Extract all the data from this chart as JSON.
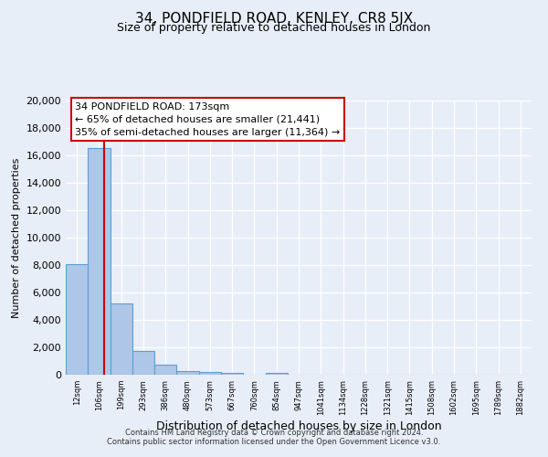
{
  "title": "34, PONDFIELD ROAD, KENLEY, CR8 5JX",
  "subtitle": "Size of property relative to detached houses in London",
  "xlabel": "Distribution of detached houses by size in London",
  "ylabel": "Number of detached properties",
  "bin_labels": [
    "12sqm",
    "106sqm",
    "199sqm",
    "293sqm",
    "386sqm",
    "480sqm",
    "573sqm",
    "667sqm",
    "760sqm",
    "854sqm",
    "947sqm",
    "1041sqm",
    "1134sqm",
    "1228sqm",
    "1321sqm",
    "1415sqm",
    "1508sqm",
    "1602sqm",
    "1695sqm",
    "1789sqm",
    "1882sqm"
  ],
  "bar_values": [
    8100,
    16500,
    5200,
    1750,
    750,
    300,
    175,
    125,
    0,
    125,
    0,
    0,
    0,
    0,
    0,
    0,
    0,
    0,
    0,
    0,
    0
  ],
  "bar_color": "#aec6e8",
  "bar_edge_color": "#5a9fd4",
  "property_line_color": "#cc0000",
  "property_line_x": 1.72,
  "annotation_text": "34 PONDFIELD ROAD: 173sqm\n← 65% of detached houses are smaller (21,441)\n35% of semi-detached houses are larger (11,364) →",
  "annotation_box_color": "#ffffff",
  "annotation_box_edge": "#cc0000",
  "ylim": [
    0,
    20000
  ],
  "yticks": [
    0,
    2000,
    4000,
    6000,
    8000,
    10000,
    12000,
    14000,
    16000,
    18000,
    20000
  ],
  "background_color": "#e8eef7",
  "grid_color": "#c8d4e8",
  "footer_line1": "Contains HM Land Registry data © Crown copyright and database right 2024.",
  "footer_line2": "Contains public sector information licensed under the Open Government Licence v3.0."
}
